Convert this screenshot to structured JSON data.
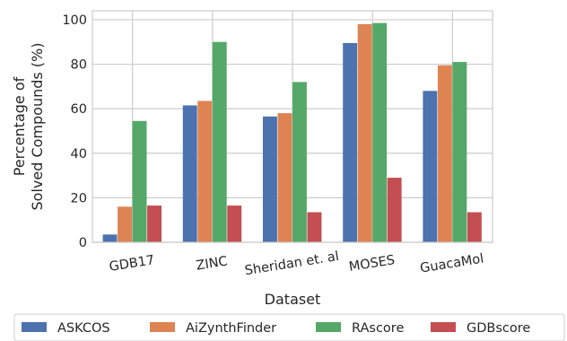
{
  "chart_data": {
    "type": "bar",
    "xlabel": "Dataset",
    "ylabel_lines": [
      "Percentage of",
      "Solved Compounds (%)"
    ],
    "categories": [
      "GDB17",
      "ZINC",
      "Sheridan et. al",
      "MOSES",
      "GuacaMol"
    ],
    "ylim": [
      0,
      104
    ],
    "yticks": [
      0,
      20,
      40,
      60,
      80,
      100
    ],
    "grid": true,
    "legend_position": "bottom",
    "series": [
      {
        "name": "ASKCOS",
        "color": "#4C72B0",
        "values": [
          3.5,
          61.5,
          56.5,
          89.5,
          68
        ]
      },
      {
        "name": "AiZynthFinder",
        "color": "#DD8452",
        "values": [
          16,
          63.5,
          58,
          98,
          79.5
        ]
      },
      {
        "name": "RAscore",
        "color": "#55A868",
        "values": [
          54.5,
          90,
          72,
          98.5,
          81
        ]
      },
      {
        "name": "GDBscore",
        "color": "#C44E52",
        "values": [
          16.5,
          16.5,
          13.5,
          29,
          13.5
        ]
      }
    ]
  }
}
